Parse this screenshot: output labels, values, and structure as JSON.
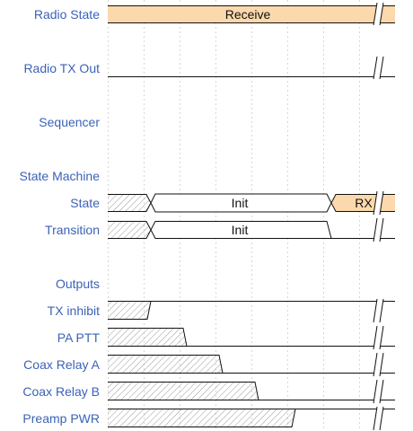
{
  "colors": {
    "label": "#3b62b8",
    "line": "#111111",
    "grid": "#d6d6d6",
    "receive_fill": "#fbd9ac",
    "hatch": "#9a9a9a"
  },
  "rows": [
    {
      "key": "radio_state",
      "label": "Radio State"
    },
    {
      "key": "radio_tx_out",
      "label": "Radio TX Out"
    },
    {
      "key": "sequencer",
      "label": "Sequencer"
    },
    {
      "key": "state_machine",
      "label": "State Machine"
    },
    {
      "key": "state",
      "label": "State"
    },
    {
      "key": "transition",
      "label": "Transition"
    },
    {
      "key": "outputs",
      "label": "Outputs"
    },
    {
      "key": "tx_inhibit",
      "label": "TX inhibit"
    },
    {
      "key": "pa_ptt",
      "label": "PA PTT"
    },
    {
      "key": "coax_relay_a",
      "label": "Coax Relay A"
    },
    {
      "key": "coax_relay_b",
      "label": "Coax Relay B"
    },
    {
      "key": "preamp_pwr",
      "label": "Preamp PWR"
    }
  ],
  "waves": {
    "radio_state": {
      "text": "Receive"
    },
    "state": {
      "init": "Init",
      "rx": "RX"
    },
    "transition": {
      "init": "Init"
    }
  }
}
